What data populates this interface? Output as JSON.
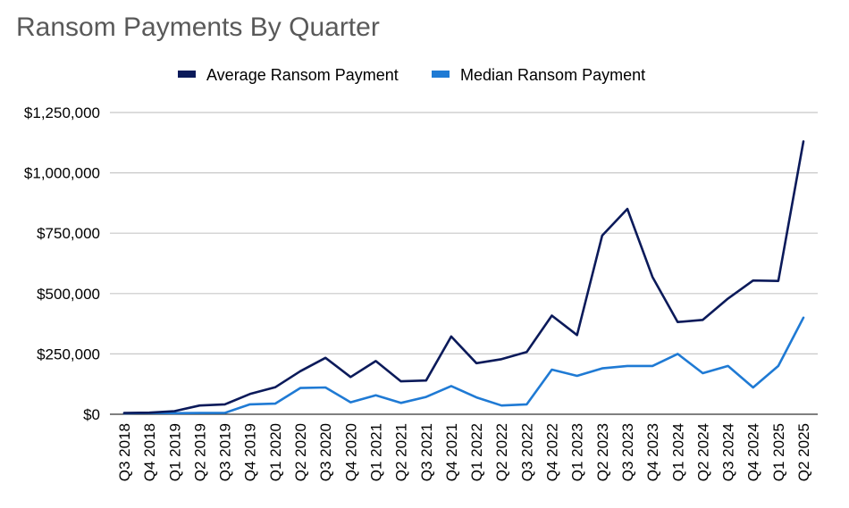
{
  "title": "Ransom Payments By Quarter",
  "legend": {
    "position": "top",
    "items": [
      {
        "label": "Average Ransom Payment",
        "color": "#0b1a5a"
      },
      {
        "label": "Median Ransom Payment",
        "color": "#1f7ad4"
      }
    ]
  },
  "chart_data": {
    "type": "line",
    "title": "Ransom Payments By Quarter",
    "xlabel": "",
    "ylabel": "",
    "ylim": [
      0,
      1250000
    ],
    "yticks": [
      0,
      250000,
      500000,
      750000,
      1000000,
      1250000
    ],
    "ytick_labels": [
      "$0",
      "$250,000",
      "$500,000",
      "$750,000",
      "$1,000,000",
      "$1,250,000"
    ],
    "grid": true,
    "legend_position": "top",
    "categories": [
      "Q3 2018",
      "Q4 2018",
      "Q1 2019",
      "Q2 2019",
      "Q3 2019",
      "Q4 2019",
      "Q1 2020",
      "Q2 2020",
      "Q3 2020",
      "Q4 2020",
      "Q1 2021",
      "Q2 2021",
      "Q3 2021",
      "Q4 2021",
      "Q1 2022",
      "Q2 2022",
      "Q3 2022",
      "Q4 2022",
      "Q1 2023",
      "Q2 2023",
      "Q3 2023",
      "Q4 2023",
      "Q1 2024",
      "Q2 2024",
      "Q3 2024",
      "Q4 2024",
      "Q1 2025",
      "Q2 2025"
    ],
    "series": [
      {
        "name": "Average Ransom Payment",
        "color": "#0b1a5a",
        "values": [
          5000,
          6700,
          12800,
          36300,
          41200,
          84100,
          111600,
          178300,
          233800,
          154100,
          220300,
          136600,
          139700,
          322200,
          211500,
          228100,
          258100,
          408600,
          327900,
          740100,
          850700,
          568700,
          381900,
          391000,
          479200,
          553900,
          552000,
          1130000
        ]
      },
      {
        "name": "Median Ransom Payment",
        "color": "#1f7ad4",
        "values": [
          4000,
          5500,
          4300,
          5000,
          5500,
          41000,
          44000,
          108600,
          111000,
          49500,
          78400,
          47000,
          71700,
          117000,
          70000,
          36400,
          40900,
          185000,
          159000,
          190000,
          200000,
          200000,
          250000,
          170000,
          200000,
          110900,
          200000,
          400000
        ]
      }
    ]
  }
}
